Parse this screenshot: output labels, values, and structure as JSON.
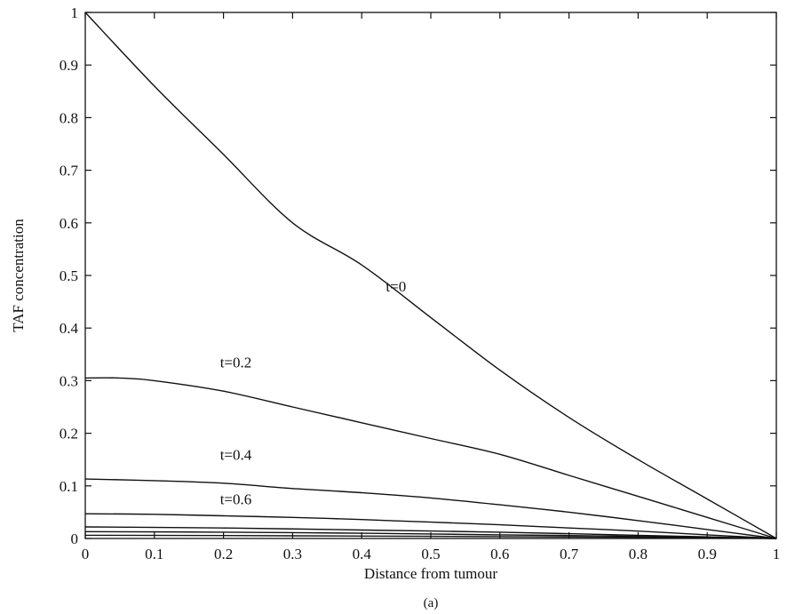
{
  "chart_data": {
    "type": "line",
    "title": "",
    "xlabel": "Distance from tumour",
    "ylabel": "TAF concentration",
    "panel_label": "(a)",
    "xlim": [
      0,
      1
    ],
    "ylim": [
      0,
      1
    ],
    "grid": false,
    "legend": "none",
    "xticks": [
      0,
      0.1,
      0.2,
      0.3,
      0.4,
      0.5,
      0.6,
      0.7,
      0.8,
      0.9,
      1
    ],
    "xtick_labels": [
      "0",
      "0.1",
      "0.2",
      "0.3",
      "0.4",
      "0.5",
      "0.6",
      "0.7",
      "0.8",
      "0.9",
      "1"
    ],
    "yticks": [
      0,
      0.1,
      0.2,
      0.3,
      0.4,
      0.5,
      0.6,
      0.7,
      0.8,
      0.9,
      1
    ],
    "ytick_labels": [
      "0",
      "0.1",
      "0.2",
      "0.3",
      "0.4",
      "0.5",
      "0.6",
      "0.7",
      "0.8",
      "0.9",
      "1"
    ],
    "series": [
      {
        "label": "t=0",
        "label_pos": [
          0.435,
          0.48
        ],
        "x": [
          0,
          0.1,
          0.2,
          0.3,
          0.4,
          0.5,
          0.6,
          0.7,
          0.8,
          0.9,
          1
        ],
        "y": [
          1.0,
          0.86,
          0.73,
          0.6,
          0.52,
          0.42,
          0.32,
          0.23,
          0.15,
          0.075,
          0
        ]
      },
      {
        "label": "t=0.2",
        "label_pos": [
          0.195,
          0.335
        ],
        "x": [
          0,
          0.05,
          0.1,
          0.2,
          0.3,
          0.4,
          0.5,
          0.6,
          0.7,
          0.8,
          0.9,
          1
        ],
        "y": [
          0.305,
          0.305,
          0.3,
          0.28,
          0.25,
          0.22,
          0.19,
          0.16,
          0.12,
          0.08,
          0.04,
          0
        ]
      },
      {
        "label": "t=0.4",
        "label_pos": [
          0.195,
          0.16
        ],
        "x": [
          0,
          0.1,
          0.2,
          0.3,
          0.4,
          0.5,
          0.6,
          0.7,
          0.8,
          0.9,
          1
        ],
        "y": [
          0.113,
          0.11,
          0.105,
          0.095,
          0.087,
          0.077,
          0.064,
          0.05,
          0.034,
          0.017,
          0
        ]
      },
      {
        "label": "t=0.6",
        "label_pos": [
          0.195,
          0.075
        ],
        "x": [
          0,
          0.1,
          0.2,
          0.3,
          0.4,
          0.5,
          0.6,
          0.7,
          0.8,
          0.9,
          1
        ],
        "y": [
          0.047,
          0.046,
          0.043,
          0.04,
          0.036,
          0.031,
          0.026,
          0.02,
          0.014,
          0.007,
          0
        ]
      },
      {
        "label": "",
        "x": [
          0,
          0.2,
          0.4,
          0.6,
          0.8,
          1
        ],
        "y": [
          0.022,
          0.02,
          0.016,
          0.012,
          0.006,
          0
        ]
      },
      {
        "label": "",
        "x": [
          0,
          0.2,
          0.4,
          0.6,
          0.8,
          1
        ],
        "y": [
          0.013,
          0.012,
          0.01,
          0.007,
          0.004,
          0
        ]
      },
      {
        "label": "",
        "x": [
          0,
          0.2,
          0.4,
          0.6,
          0.8,
          1
        ],
        "y": [
          0.006,
          0.0055,
          0.0045,
          0.0035,
          0.002,
          0
        ]
      }
    ]
  }
}
